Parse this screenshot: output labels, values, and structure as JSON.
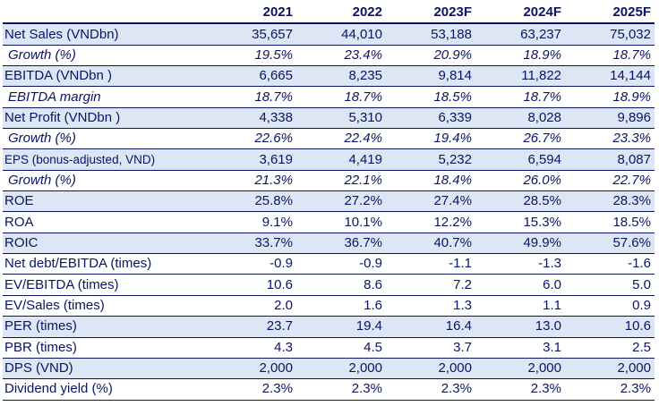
{
  "header": {
    "label": "",
    "years": [
      "2021",
      "2022",
      "2023F",
      "2024F",
      "2025F"
    ]
  },
  "rows": [
    {
      "label": "Net Sales (VNDbn)",
      "values": [
        "35,657",
        "44,010",
        "53,188",
        "63,237",
        "75,032"
      ]
    },
    {
      "label": "Growth (%)",
      "values": [
        "19.5%",
        "23.4%",
        "20.9%",
        "18.9%",
        "18.7%"
      ]
    },
    {
      "label": "EBITDA (VNDbn )",
      "values": [
        "6,665",
        "8,235",
        "9,814",
        "11,822",
        "14,144"
      ]
    },
    {
      "label": "EBITDA margin",
      "values": [
        "18.7%",
        "18.7%",
        "18.5%",
        "18.7%",
        "18.9%"
      ]
    },
    {
      "label": "Net Profit (VNDbn )",
      "values": [
        "4,338",
        "5,310",
        "6,339",
        "8,028",
        "9,896"
      ]
    },
    {
      "label": "Growth (%)",
      "values": [
        "22.6%",
        "22.4%",
        "19.4%",
        "26.7%",
        "23.3%"
      ]
    },
    {
      "label": "EPS (bonus-adjusted, VND)",
      "values": [
        "3,619",
        "4,419",
        "5,232",
        "6,594",
        "8,087"
      ]
    },
    {
      "label": "Growth (%)",
      "values": [
        "21.3%",
        "22.1%",
        "18.4%",
        "26.0%",
        "22.7%"
      ]
    },
    {
      "label": "ROE",
      "values": [
        "25.8%",
        "27.2%",
        "27.4%",
        "28.5%",
        "28.3%"
      ]
    },
    {
      "label": "ROA",
      "values": [
        "9.1%",
        "10.1%",
        "12.2%",
        "15.3%",
        "18.5%"
      ]
    },
    {
      "label": "ROIC",
      "values": [
        "33.7%",
        "36.7%",
        "40.7%",
        "49.9%",
        "57.6%"
      ]
    },
    {
      "label": "Net debt/EBITDA (times)",
      "values": [
        "-0.9",
        "-0.9",
        "-1.1",
        "-1.3",
        "-1.6"
      ]
    },
    {
      "label": "EV/EBITDA (times)",
      "values": [
        "10.6",
        "8.6",
        "7.2",
        "6.0",
        "5.0"
      ]
    },
    {
      "label": "EV/Sales (times)",
      "values": [
        "2.0",
        "1.6",
        "1.3",
        "1.1",
        "0.9"
      ]
    },
    {
      "label": "PER (times)",
      "values": [
        "23.7",
        "19.4",
        "16.4",
        "13.0",
        "10.6"
      ]
    },
    {
      "label": "PBR (times)",
      "values": [
        "4.3",
        "4.5",
        "3.7",
        "3.1",
        "2.5"
      ]
    },
    {
      "label": "DPS (VND)",
      "values": [
        "2,000",
        "2,000",
        "2,000",
        "2,000",
        "2,000"
      ]
    },
    {
      "label": "Dividend yield (%)",
      "values": [
        "2.3%",
        "2.3%",
        "2.3%",
        "2.3%",
        "2.3%"
      ]
    }
  ],
  "colors": {
    "text": "#0a1464",
    "shade": "#dde6f4",
    "rule": "#0a1464"
  }
}
